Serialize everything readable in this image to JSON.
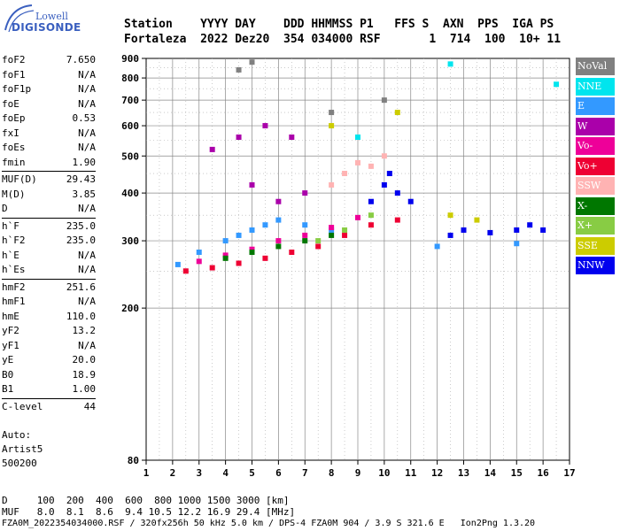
{
  "logo": {
    "top_text": "Lowell",
    "brand": "DIGISONDE"
  },
  "header": {
    "line1": "Station    YYYY DAY    DDD HHMMSS P1   FFS S  AXN  PPS  IGA PS",
    "line2": "Fortaleza  2022 Dez20  354 034000 RSF       1  714  100  10+ 11"
  },
  "params": {
    "group1": [
      {
        "name": "foF2",
        "value": "7.650"
      },
      {
        "name": "foF1",
        "value": "N/A"
      },
      {
        "name": "foF1p",
        "value": "N/A"
      },
      {
        "name": "foE",
        "value": "N/A"
      },
      {
        "name": "foEp",
        "value": "0.53"
      },
      {
        "name": "fxI",
        "value": "N/A"
      },
      {
        "name": "foEs",
        "value": "N/A"
      },
      {
        "name": "fmin",
        "value": "1.90"
      }
    ],
    "group2": [
      {
        "name": "MUF(D)",
        "value": "29.43"
      },
      {
        "name": "M(D)",
        "value": "3.85"
      },
      {
        "name": "D",
        "value": "N/A"
      }
    ],
    "group3": [
      {
        "name": "h`F",
        "value": "235.0"
      },
      {
        "name": "h`F2",
        "value": "235.0"
      },
      {
        "name": "h`E",
        "value": "N/A"
      },
      {
        "name": "h`Es",
        "value": "N/A"
      }
    ],
    "group4": [
      {
        "name": "hmF2",
        "value": "251.6"
      },
      {
        "name": "hmF1",
        "value": "N/A"
      },
      {
        "name": "hmE",
        "value": "110.0"
      },
      {
        "name": "yF2",
        "value": "13.2"
      },
      {
        "name": "yF1",
        "value": "N/A"
      },
      {
        "name": "yE",
        "value": "20.0"
      },
      {
        "name": "B0",
        "value": "18.9"
      },
      {
        "name": "B1",
        "value": "1.00"
      }
    ],
    "group5": [
      {
        "name": "C-level",
        "value": "44"
      }
    ]
  },
  "auto": {
    "line1": "Auto:",
    "line2": "Artist5",
    "line3": "500200"
  },
  "footer": {
    "d_line": "D     100  200  400  600  800 1000 1500 3000 [km]",
    "muf_line": "MUF   8.0  8.1  8.6  9.4 10.5 12.2 16.9 29.4 [MHz]",
    "info_line": "FZA0M_2022354034000.RSF / 320fx256h 50 kHz 5.0 km / DPS-4 FZA0M 904 / 3.9 S 321.6 E   Ion2Png 1.3.20"
  },
  "legend": [
    {
      "label": "NoVal",
      "color": "#808080"
    },
    {
      "label": "NNE",
      "color": "#00e5ee"
    },
    {
      "label": "E",
      "color": "#3399ff"
    },
    {
      "label": "W",
      "color": "#aa00aa"
    },
    {
      "label": "Vo-",
      "color": "#ee0099"
    },
    {
      "label": "Vo+",
      "color": "#ee0033"
    },
    {
      "label": "SSW",
      "color": "#ffb3b3"
    },
    {
      "label": "X-",
      "color": "#007700"
    },
    {
      "label": "X+",
      "color": "#88cc44"
    },
    {
      "label": "SSE",
      "color": "#cccc00"
    },
    {
      "label": "NNW",
      "color": "#0000ee"
    }
  ],
  "chart_data": {
    "type": "scatter",
    "title": "",
    "xlabel": "",
    "ylabel": "",
    "xlim": [
      1,
      17
    ],
    "ylim": [
      80,
      900
    ],
    "x_ticks": [
      1,
      2,
      3,
      4,
      5,
      6,
      7,
      8,
      9,
      10,
      11,
      12,
      13,
      14,
      15,
      16,
      17
    ],
    "y_ticks": [
      80,
      200,
      300,
      400,
      500,
      600,
      700,
      800,
      900
    ],
    "y_scale": "log",
    "grid": true,
    "legend_placement": "right",
    "series": [
      {
        "color_key": "NNW",
        "points": [
          [
            10,
            420
          ],
          [
            10.5,
            400
          ],
          [
            11,
            380
          ],
          [
            12.5,
            310
          ],
          [
            13,
            320
          ],
          [
            14,
            315
          ],
          [
            15,
            320
          ],
          [
            15.5,
            330
          ],
          [
            16,
            320
          ],
          [
            9.5,
            380
          ],
          [
            10.2,
            450
          ]
        ]
      },
      {
        "color_key": "E",
        "points": [
          [
            2.2,
            260
          ],
          [
            3,
            280
          ],
          [
            4,
            300
          ],
          [
            4.5,
            310
          ],
          [
            5,
            320
          ],
          [
            5.5,
            330
          ],
          [
            6,
            340
          ],
          [
            7,
            330
          ],
          [
            8,
            320
          ],
          [
            12,
            290
          ],
          [
            15,
            295
          ]
        ]
      },
      {
        "color_key": "Vo+",
        "points": [
          [
            2.5,
            250
          ],
          [
            3.5,
            255
          ],
          [
            4.5,
            262
          ],
          [
            5.5,
            270
          ],
          [
            6.5,
            280
          ],
          [
            7.5,
            290
          ],
          [
            8.5,
            310
          ],
          [
            9.5,
            330
          ],
          [
            10.5,
            340
          ]
        ]
      },
      {
        "color_key": "Vo-",
        "points": [
          [
            3,
            265
          ],
          [
            4,
            275
          ],
          [
            5,
            285
          ],
          [
            6,
            300
          ],
          [
            7,
            310
          ],
          [
            8,
            325
          ],
          [
            9,
            345
          ]
        ]
      },
      {
        "color_key": "W",
        "points": [
          [
            3.5,
            520
          ],
          [
            4.5,
            560
          ],
          [
            5.5,
            600
          ],
          [
            6.5,
            560
          ],
          [
            5,
            420
          ],
          [
            6,
            380
          ],
          [
            7,
            400
          ]
        ]
      },
      {
        "color_key": "SSW",
        "points": [
          [
            8,
            420
          ],
          [
            8.5,
            450
          ],
          [
            9,
            480
          ],
          [
            9.5,
            470
          ],
          [
            10,
            500
          ]
        ]
      },
      {
        "color_key": "X-",
        "points": [
          [
            4,
            270
          ],
          [
            5,
            280
          ],
          [
            6,
            290
          ],
          [
            7,
            300
          ],
          [
            8,
            310
          ]
        ]
      },
      {
        "color_key": "X+",
        "points": [
          [
            7.5,
            300
          ],
          [
            8.5,
            320
          ],
          [
            9.5,
            350
          ]
        ]
      },
      {
        "color_key": "SSE",
        "points": [
          [
            10.5,
            650
          ],
          [
            8,
            600
          ],
          [
            12.5,
            350
          ],
          [
            13.5,
            340
          ]
        ]
      },
      {
        "color_key": "NNE",
        "points": [
          [
            12.5,
            870
          ],
          [
            16.5,
            770
          ],
          [
            9,
            560
          ]
        ]
      },
      {
        "color_key": "NoVal",
        "points": [
          [
            5,
            880
          ],
          [
            4.5,
            840
          ],
          [
            10,
            700
          ],
          [
            8,
            650
          ]
        ]
      }
    ]
  }
}
